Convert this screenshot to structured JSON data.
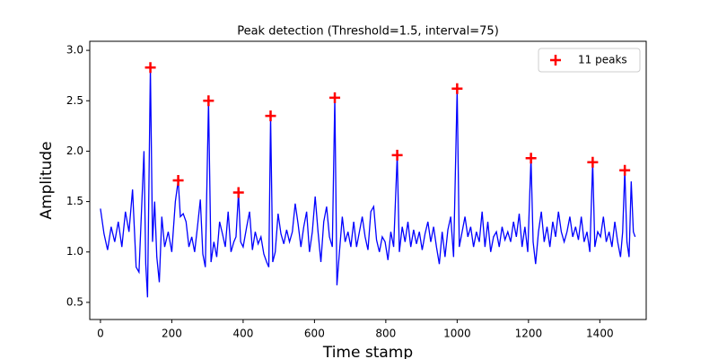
{
  "chart_data": {
    "type": "line",
    "title": "Peak detection (Threshold=1.5, interval=75)",
    "x_label": "Time stamp",
    "y_label": "Amplitude",
    "xlim": [
      -30,
      1530
    ],
    "ylim": [
      0.33,
      3.09
    ],
    "xticks": [
      0,
      200,
      400,
      600,
      800,
      1000,
      1200,
      1400
    ],
    "yticks": [
      0.5,
      {
        "value": 1,
        "label": "1.0"
      },
      1.5,
      {
        "value": 2,
        "label": "2.0"
      },
      2.5,
      {
        "value": 3,
        "label": "3.0"
      }
    ],
    "grid": false,
    "legend": "upper right",
    "series": [
      {
        "color": "#0000ff",
        "x": [
          0,
          10,
          20,
          30,
          40,
          50,
          60,
          70,
          80,
          90,
          100,
          108,
          115,
          122,
          127,
          132,
          140,
          146,
          152,
          158,
          165,
          172,
          180,
          190,
          200,
          210,
          218,
          224,
          232,
          240,
          248,
          256,
          264,
          272,
          280,
          287,
          294,
          303,
          310,
          318,
          326,
          334,
          342,
          350,
          358,
          366,
          374,
          380,
          387,
          393,
          400,
          410,
          418,
          426,
          434,
          442,
          450,
          458,
          466,
          472,
          477,
          483,
          490,
          498,
          506,
          514,
          522,
          530,
          538,
          546,
          554,
          562,
          570,
          578,
          586,
          594,
          602,
          610,
          618,
          626,
          634,
          642,
          650,
          657,
          663,
          670,
          678,
          686,
          694,
          702,
          710,
          718,
          726,
          734,
          742,
          750,
          758,
          766,
          774,
          782,
          790,
          798,
          806,
          814,
          822,
          832,
          838,
          846,
          854,
          862,
          870,
          878,
          886,
          894,
          902,
          910,
          918,
          926,
          934,
          942,
          950,
          958,
          966,
          974,
          982,
          990,
          1000,
          1006,
          1014,
          1022,
          1030,
          1038,
          1046,
          1054,
          1062,
          1070,
          1078,
          1086,
          1094,
          1102,
          1110,
          1118,
          1126,
          1134,
          1142,
          1150,
          1158,
          1166,
          1174,
          1182,
          1190,
          1198,
          1207,
          1213,
          1220,
          1228,
          1236,
          1244,
          1252,
          1260,
          1268,
          1276,
          1284,
          1292,
          1300,
          1308,
          1316,
          1324,
          1332,
          1340,
          1348,
          1356,
          1364,
          1372,
          1380,
          1386,
          1394,
          1402,
          1410,
          1418,
          1426,
          1434,
          1442,
          1450,
          1458,
          1464,
          1470,
          1476,
          1482,
          1488,
          1494,
          1499
        ],
        "values": [
          1.43,
          1.18,
          1.02,
          1.25,
          1.1,
          1.3,
          1.05,
          1.4,
          1.2,
          1.62,
          0.85,
          0.8,
          1.4,
          2.0,
          0.88,
          0.55,
          2.83,
          1.1,
          1.5,
          0.95,
          0.7,
          1.35,
          1.05,
          1.2,
          1.0,
          1.5,
          1.71,
          1.35,
          1.38,
          1.3,
          1.05,
          1.15,
          1.0,
          1.25,
          1.52,
          0.98,
          0.85,
          2.5,
          0.9,
          1.1,
          0.95,
          1.3,
          1.18,
          1.05,
          1.4,
          1.0,
          1.1,
          1.15,
          1.59,
          1.1,
          1.05,
          1.25,
          1.4,
          1.02,
          1.2,
          1.08,
          1.15,
          0.98,
          0.9,
          0.85,
          2.35,
          0.9,
          1.0,
          1.38,
          1.18,
          1.08,
          1.22,
          1.1,
          1.2,
          1.48,
          1.28,
          1.05,
          1.25,
          1.4,
          1.0,
          1.2,
          1.55,
          1.2,
          0.9,
          1.3,
          1.45,
          1.15,
          1.05,
          2.53,
          0.67,
          1.0,
          1.35,
          1.1,
          1.2,
          1.05,
          1.3,
          1.05,
          1.2,
          1.35,
          1.15,
          1.02,
          1.4,
          1.45,
          1.12,
          1.0,
          1.15,
          1.1,
          0.92,
          1.2,
          1.05,
          1.96,
          1.0,
          1.25,
          1.1,
          1.3,
          1.05,
          1.22,
          1.08,
          1.2,
          1.02,
          1.18,
          1.3,
          1.1,
          1.25,
          1.05,
          0.88,
          1.2,
          0.95,
          1.22,
          1.35,
          0.95,
          2.62,
          1.05,
          1.2,
          1.35,
          1.15,
          1.25,
          1.05,
          1.2,
          1.1,
          1.4,
          1.05,
          1.3,
          1.0,
          1.15,
          1.2,
          1.05,
          1.25,
          1.12,
          1.2,
          1.1,
          1.3,
          1.15,
          1.38,
          1.05,
          1.25,
          1.0,
          1.93,
          1.1,
          0.88,
          1.2,
          1.4,
          1.1,
          1.25,
          1.05,
          1.3,
          1.15,
          1.4,
          1.2,
          1.1,
          1.2,
          1.35,
          1.15,
          1.25,
          1.12,
          1.35,
          1.1,
          1.2,
          1.0,
          1.89,
          1.05,
          1.2,
          1.15,
          1.35,
          1.1,
          1.2,
          1.05,
          1.3,
          1.1,
          0.95,
          1.2,
          1.81,
          1.1,
          0.95,
          1.7,
          1.2,
          1.15
        ]
      },
      {
        "name": "11 peaks",
        "color": "#ff0000",
        "marker": "+",
        "x": [
          140,
          218,
          303,
          387,
          477,
          657,
          832,
          1000,
          1207,
          1380,
          1470
        ],
        "values": [
          2.83,
          1.71,
          2.5,
          1.59,
          2.35,
          2.53,
          1.96,
          2.62,
          1.93,
          1.89,
          1.81
        ]
      }
    ]
  }
}
